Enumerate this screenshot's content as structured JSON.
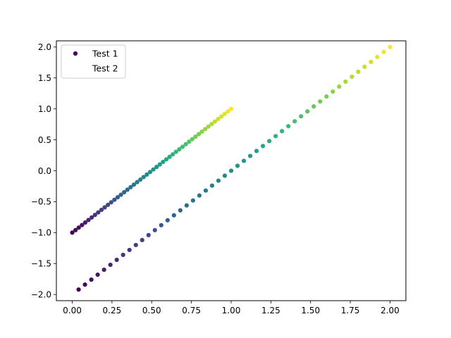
{
  "chart_data": {
    "type": "scatter",
    "title": "",
    "xlabel": "",
    "ylabel": "",
    "xlim": [
      -0.1,
      2.1
    ],
    "ylim": [
      -2.1,
      2.1
    ],
    "xticks": [
      "0.00",
      "0.25",
      "0.50",
      "0.75",
      "1.00",
      "1.25",
      "1.50",
      "1.75",
      "2.00"
    ],
    "yticks": [
      "−2.0",
      "−1.5",
      "−1.0",
      "−0.5",
      "0.0",
      "0.5",
      "1.0",
      "1.5",
      "2.0"
    ],
    "grid": false,
    "legend_position": "upper-left",
    "colormap": "viridis",
    "colormap_stops": [
      "#440154",
      "#46327e",
      "#365c8d",
      "#277f8e",
      "#1fa187",
      "#4ac16d",
      "#a0da39",
      "#fde725"
    ],
    "series": [
      {
        "name": "Test 1",
        "legend_color": "#440154",
        "x_start": 0.0,
        "x_end": 1.0,
        "y_start": -1.0,
        "y_end": 1.0,
        "n_points": 50
      },
      {
        "name": "Test 2",
        "legend_color": "#ffffff",
        "x_start": 0.04,
        "x_end": 2.0,
        "y_start": -1.92,
        "y_end": 2.0,
        "n_points": 50
      }
    ]
  }
}
